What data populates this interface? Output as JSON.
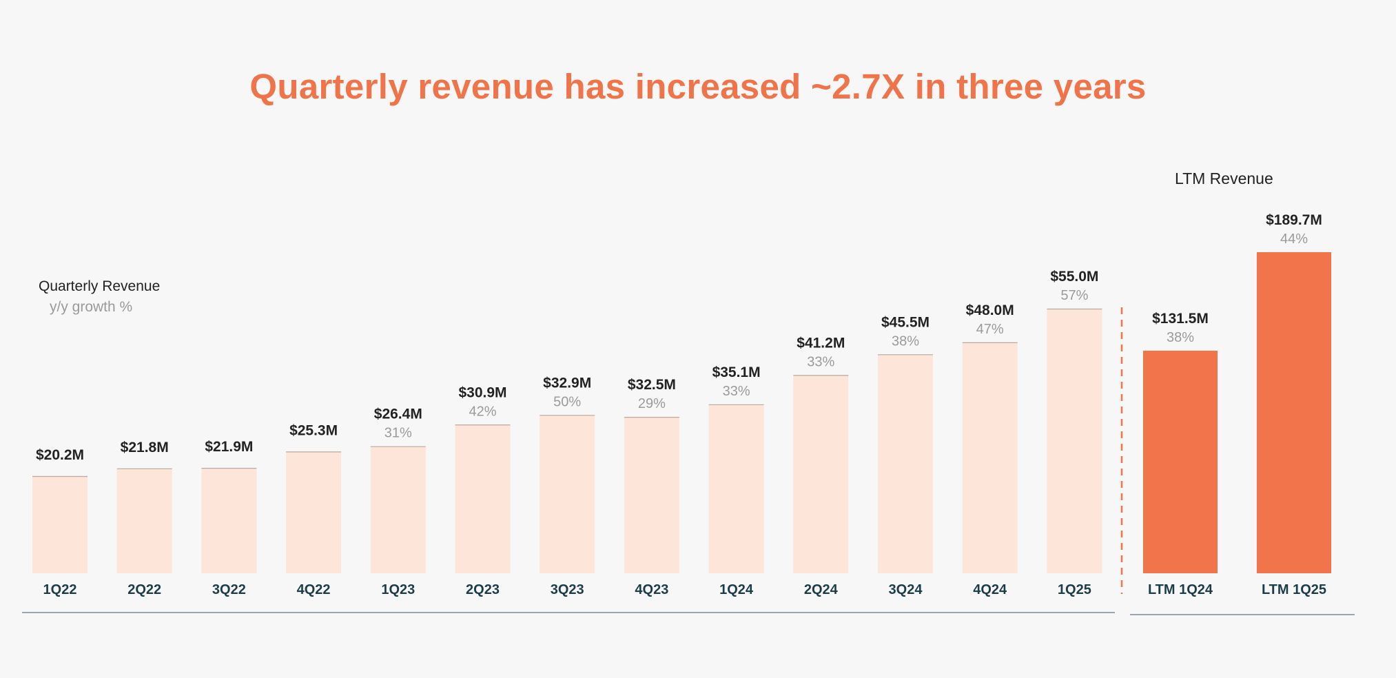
{
  "title": "Quarterly revenue has increased ~2.7X in three years",
  "legend": {
    "value_label": "Quarterly Revenue",
    "growth_label": "y/y growth %"
  },
  "ltm_title": "LTM Revenue",
  "colors": {
    "title": "#f07449",
    "quarter_bar": "#fde5d9",
    "ltm_bar": "#f1744a",
    "category_text": "#1b3d4a",
    "axis_line": "#9aa5ad"
  },
  "chart_data": [
    {
      "type": "bar",
      "title": "Quarterly Revenue",
      "categories": [
        "1Q22",
        "2Q22",
        "3Q22",
        "4Q22",
        "1Q23",
        "2Q23",
        "3Q23",
        "4Q23",
        "1Q24",
        "2Q24",
        "3Q24",
        "4Q24",
        "1Q25"
      ],
      "values": [
        20.2,
        21.8,
        21.9,
        25.3,
        26.4,
        30.9,
        32.9,
        32.5,
        35.1,
        41.2,
        45.5,
        48.0,
        55.0
      ],
      "value_labels": [
        "$20.2M",
        "$21.8M",
        "$21.9M",
        "$25.3M",
        "$26.4M",
        "$30.9M",
        "$32.9M",
        "$32.5M",
        "$35.1M",
        "$41.2M",
        "$45.5M",
        "$48.0M",
        "$55.0M"
      ],
      "growth_labels": [
        "",
        "",
        "",
        "",
        "31%",
        "42%",
        "50%",
        "29%",
        "33%",
        "33%",
        "38%",
        "47%",
        "57%"
      ],
      "unit": "$M",
      "ylim": [
        0,
        60
      ],
      "grid": false
    },
    {
      "type": "bar",
      "title": "LTM Revenue",
      "categories": [
        "LTM 1Q24",
        "LTM 1Q25"
      ],
      "values": [
        131.5,
        189.7
      ],
      "value_labels": [
        "$131.5M",
        "$189.7M"
      ],
      "growth_labels": [
        "38%",
        "44%"
      ],
      "unit": "$M",
      "ylim": [
        0,
        200
      ],
      "grid": false
    }
  ]
}
